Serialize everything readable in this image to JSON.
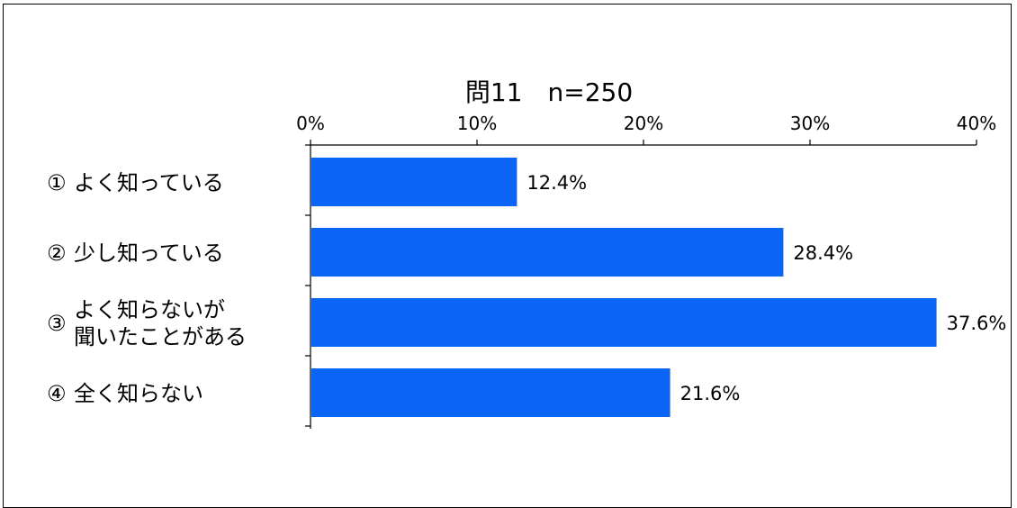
{
  "chart_data": {
    "type": "bar",
    "orientation": "horizontal",
    "title": "問11　n=250",
    "categories": [
      {
        "marker": "①",
        "lines": [
          "よく知っている"
        ]
      },
      {
        "marker": "②",
        "lines": [
          "少し知っている"
        ]
      },
      {
        "marker": "③",
        "lines": [
          "よく知らないが",
          "聞いたことがある"
        ]
      },
      {
        "marker": "④",
        "lines": [
          "全く知らない"
        ]
      }
    ],
    "values": [
      12.4,
      28.4,
      37.6,
      21.6
    ],
    "value_labels": [
      "12.4%",
      "28.4%",
      "37.6%",
      "21.6%"
    ],
    "xlim": [
      0,
      40
    ],
    "xticks": [
      0,
      10,
      20,
      30,
      40
    ],
    "xtick_labels": [
      "0%",
      "10%",
      "20%",
      "30%",
      "40%"
    ],
    "bar_color": "#0a64f5",
    "grid": false,
    "legend": "none"
  }
}
